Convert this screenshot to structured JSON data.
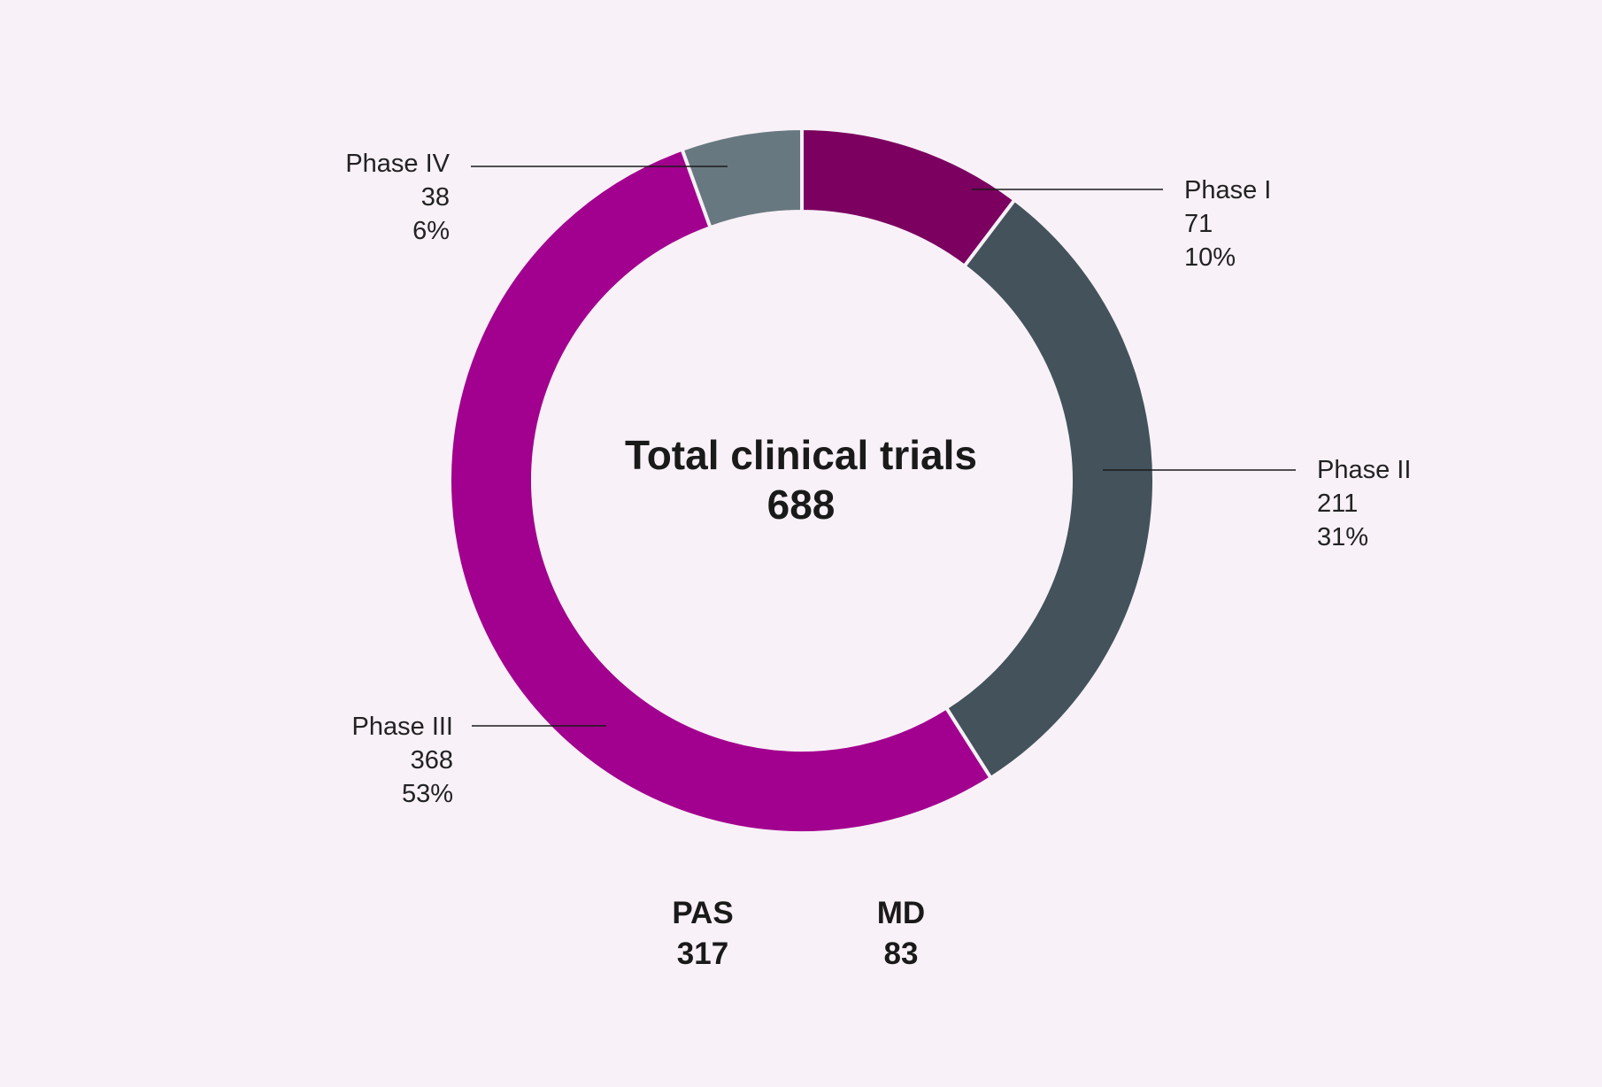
{
  "chart_data": {
    "type": "pie",
    "donut": true,
    "center": {
      "title": "Total clinical trials",
      "total": "688"
    },
    "slices": [
      {
        "label": "Phase I",
        "value": 71,
        "percent": "10%",
        "color": "#7b005f",
        "value_label": "71"
      },
      {
        "label": "Phase II",
        "value": 211,
        "percent": "31%",
        "color": "#43525b",
        "value_label": "211"
      },
      {
        "label": "Phase III",
        "value": 368,
        "percent": "53%",
        "color": "#a2008e",
        "value_label": "368"
      },
      {
        "label": "Phase IV",
        "value": 38,
        "percent": "6%",
        "color": "#687880",
        "value_label": "38"
      }
    ],
    "stats": [
      {
        "label": "PAS",
        "value": "317"
      },
      {
        "label": "MD",
        "value": "83"
      }
    ]
  }
}
